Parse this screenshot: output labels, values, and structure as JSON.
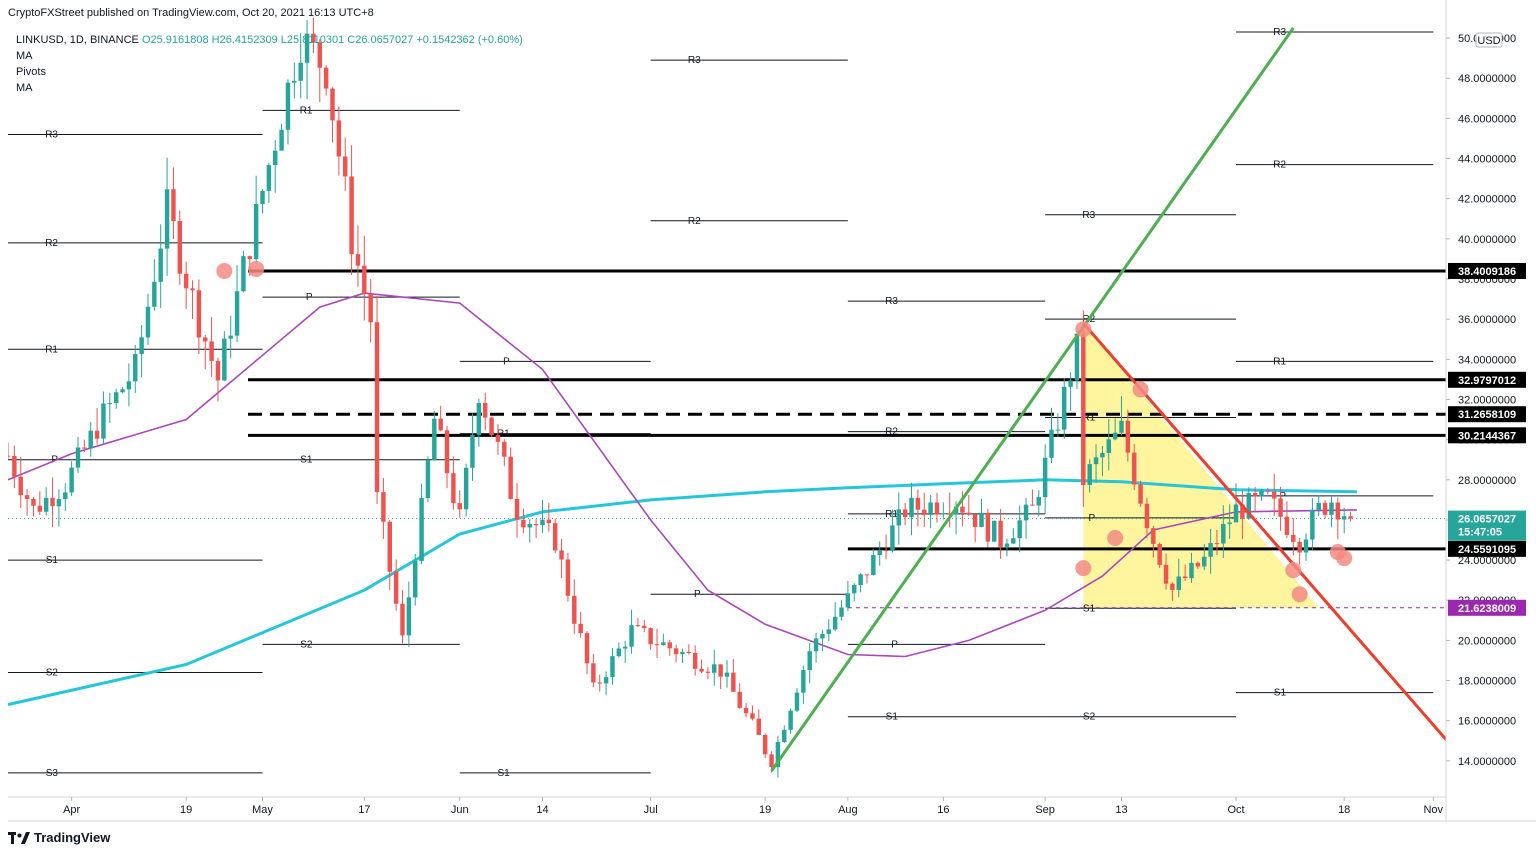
{
  "header": {
    "published_by": "CryptoFXStreet published on TradingView.com, Oct 20, 2021 16:13 UTC+8"
  },
  "legend": {
    "symbol_line": "LINKUSD, 1D, BINANCE",
    "ohlc": "O25.9161808 H26.4152309 L25.8110301 C26.0657027 +0.1542362 (+0.60%)",
    "indicators": [
      "MA",
      "Pivots",
      "MA"
    ]
  },
  "footer": {
    "logo_text": "TradingView"
  },
  "colors": {
    "bull": "#26a69a",
    "bear": "#ef5350",
    "ma_long": "#26c6da",
    "ma_short": "#ab47bc",
    "green_trend": "#4caf50",
    "red_trend": "#f23c2c",
    "triangle_fill": "#fff176",
    "last_price": "#26a69a",
    "purple_level": "#9c27b0",
    "marker": "#f28b82"
  },
  "chart_data": {
    "type": "candlestick",
    "symbol": "LINKUSD",
    "timeframe": "1D",
    "exchange": "BINANCE",
    "currency": "USD",
    "x_range": [
      "2021-03-22",
      "2021-11-03"
    ],
    "ylim": [
      12.2,
      51
    ],
    "y_ticks": [
      14,
      16,
      18,
      20,
      22,
      24,
      26,
      28,
      30,
      32,
      34,
      36,
      38,
      40,
      42,
      44,
      46,
      48,
      50
    ],
    "y_tick_labels": [
      "14.0000000",
      "16.0000000",
      "18.0000000",
      "20.0000000",
      "22.0000000",
      "24.0000000",
      "26.0000000",
      "28.0000000",
      "30.0000000",
      "32.0000000",
      "34.0000000",
      "36.0000000",
      "38.0000000",
      "40.0000000",
      "42.0000000",
      "44.0000000",
      "46.0000000",
      "48.0000000",
      "50.0000000"
    ],
    "x_ticks": [
      {
        "date": "2021-04-01",
        "label": "Apr"
      },
      {
        "date": "2021-04-19",
        "label": "19"
      },
      {
        "date": "2021-05-01",
        "label": "May"
      },
      {
        "date": "2021-05-17",
        "label": "17"
      },
      {
        "date": "2021-06-01",
        "label": "Jun"
      },
      {
        "date": "2021-06-14",
        "label": "14"
      },
      {
        "date": "2021-07-01",
        "label": "Jul"
      },
      {
        "date": "2021-07-19",
        "label": "19"
      },
      {
        "date": "2021-08-01",
        "label": "Aug"
      },
      {
        "date": "2021-08-16",
        "label": "16"
      },
      {
        "date": "2021-09-01",
        "label": "Sep"
      },
      {
        "date": "2021-09-13",
        "label": "13"
      },
      {
        "date": "2021-10-01",
        "label": "Oct"
      },
      {
        "date": "2021-10-18",
        "label": "18"
      },
      {
        "date": "2021-11-01",
        "label": "Nov"
      }
    ],
    "candle_closes_anchor": [
      [
        "2021-03-22",
        29.2
      ],
      [
        "2021-03-26",
        26.5
      ],
      [
        "2021-03-31",
        27.8
      ],
      [
        "2021-04-06",
        31.2
      ],
      [
        "2021-04-11",
        33.5
      ],
      [
        "2021-04-16",
        41.5
      ],
      [
        "2021-04-20",
        37.0
      ],
      [
        "2021-04-24",
        33.0
      ],
      [
        "2021-04-28",
        38.5
      ],
      [
        "2021-05-03",
        45.0
      ],
      [
        "2021-05-07",
        50.0
      ],
      [
        "2021-05-11",
        48.5
      ],
      [
        "2021-05-15",
        40.0
      ],
      [
        "2021-05-18",
        36.0
      ],
      [
        "2021-05-19",
        27.0
      ],
      [
        "2021-05-23",
        20.0
      ],
      [
        "2021-05-28",
        31.0
      ],
      [
        "2021-06-01",
        26.0
      ],
      [
        "2021-06-04",
        32.5
      ],
      [
        "2021-06-10",
        26.5
      ],
      [
        "2021-06-16",
        25.0
      ],
      [
        "2021-06-22",
        17.5
      ],
      [
        "2021-06-28",
        20.5
      ],
      [
        "2021-07-05",
        19.5
      ],
      [
        "2021-07-12",
        18.5
      ],
      [
        "2021-07-20",
        14.0
      ],
      [
        "2021-07-26",
        19.5
      ],
      [
        "2021-08-02",
        22.5
      ],
      [
        "2021-08-10",
        26.5
      ],
      [
        "2021-08-18",
        27.0
      ],
      [
        "2021-08-25",
        25.0
      ],
      [
        "2021-08-30",
        26.5
      ],
      [
        "2021-09-03",
        31.0
      ],
      [
        "2021-09-06",
        34.5
      ],
      [
        "2021-09-07",
        28.0
      ],
      [
        "2021-09-13",
        30.5
      ],
      [
        "2021-09-18",
        25.0
      ],
      [
        "2021-09-21",
        22.5
      ],
      [
        "2021-09-26",
        24.0
      ],
      [
        "2021-10-01",
        26.5
      ],
      [
        "2021-10-06",
        27.0
      ],
      [
        "2021-10-11",
        25.0
      ],
      [
        "2021-10-14",
        26.5
      ],
      [
        "2021-10-16",
        27.0
      ],
      [
        "2021-10-19",
        26.0657
      ]
    ],
    "moving_averages": [
      {
        "period_label": "MA",
        "color_key": "ma_long",
        "points": [
          [
            "2021-03-22",
            16.8
          ],
          [
            "2021-04-19",
            18.8
          ],
          [
            "2021-05-17",
            22.5
          ],
          [
            "2021-06-01",
            25.3
          ],
          [
            "2021-06-14",
            26.4
          ],
          [
            "2021-07-01",
            27.0
          ],
          [
            "2021-07-19",
            27.4
          ],
          [
            "2021-08-01",
            27.6
          ],
          [
            "2021-08-16",
            27.8
          ],
          [
            "2021-09-01",
            28.0
          ],
          [
            "2021-09-13",
            27.9
          ],
          [
            "2021-10-01",
            27.5
          ],
          [
            "2021-10-20",
            27.4
          ]
        ]
      },
      {
        "period_label": "MA",
        "color_key": "ma_short",
        "points": [
          [
            "2021-03-22",
            28.0
          ],
          [
            "2021-04-01",
            29.3
          ],
          [
            "2021-04-19",
            31.0
          ],
          [
            "2021-05-01",
            34.2
          ],
          [
            "2021-05-10",
            36.6
          ],
          [
            "2021-05-17",
            37.3
          ],
          [
            "2021-06-01",
            36.8
          ],
          [
            "2021-06-14",
            33.5
          ],
          [
            "2021-07-01",
            26.0
          ],
          [
            "2021-07-10",
            22.5
          ],
          [
            "2021-07-19",
            20.8
          ],
          [
            "2021-08-01",
            19.3
          ],
          [
            "2021-08-10",
            19.2
          ],
          [
            "2021-08-20",
            20.0
          ],
          [
            "2021-09-01",
            21.5
          ],
          [
            "2021-09-10",
            23.2
          ],
          [
            "2021-09-18",
            25.5
          ],
          [
            "2021-10-01",
            26.4
          ],
          [
            "2021-10-20",
            26.5
          ]
        ]
      }
    ],
    "horizontal_levels": [
      {
        "value": 38.4009186,
        "label": "38.4009186",
        "style": "solid"
      },
      {
        "value": 32.9797012,
        "label": "32.9797012",
        "style": "solid"
      },
      {
        "value": 31.2658109,
        "label": "31.2658109",
        "style": "dashed"
      },
      {
        "value": 30.2144367,
        "label": "30.2144367",
        "style": "solid"
      },
      {
        "value": 24.5591095,
        "label": "24.5591095",
        "style": "solid"
      },
      {
        "value": 21.6238009,
        "label": "21.6238009",
        "style": "dashed-purple"
      }
    ],
    "last_price": {
      "value": 26.0657027,
      "label": "26.0657027",
      "countdown": "15:47:05"
    },
    "trendlines": [
      {
        "color_key": "green_trend",
        "from": [
          "2021-07-20",
          13.5
        ],
        "to": [
          "2021-10-10",
          50.5
        ]
      },
      {
        "color_key": "red_trend",
        "from": [
          "2021-09-07",
          35.8
        ],
        "to": [
          "2021-11-04",
          14.7
        ]
      }
    ],
    "triangle": {
      "points": [
        [
          "2021-09-07",
          35.8
        ],
        [
          "2021-09-07",
          21.6238
        ],
        [
          "2021-10-14",
          21.6238
        ]
      ]
    },
    "markers": [
      [
        "2021-04-25",
        38.4
      ],
      [
        "2021-04-30",
        38.5
      ],
      [
        "2021-09-07",
        35.5
      ],
      [
        "2021-09-16",
        32.5
      ],
      [
        "2021-09-07",
        23.6
      ],
      [
        "2021-09-12",
        25.1
      ],
      [
        "2021-10-10",
        23.5
      ],
      [
        "2021-10-11",
        22.3
      ],
      [
        "2021-10-17",
        24.4
      ],
      [
        "2021-10-18",
        24.1
      ]
    ],
    "pivot_groups": [
      {
        "start": "2021-03-22",
        "end": "2021-05-01",
        "levels": [
          {
            "label": "R3",
            "value": 45.2
          },
          {
            "label": "R2",
            "value": 39.8
          },
          {
            "label": "R1",
            "value": 34.5
          },
          {
            "label": "P",
            "value": 29.0
          },
          {
            "label": "S1",
            "value": 24.0
          },
          {
            "label": "S2",
            "value": 18.4
          },
          {
            "label": "S3",
            "value": 13.4
          }
        ]
      },
      {
        "start": "2021-05-01",
        "end": "2021-06-01",
        "levels": [
          {
            "label": "R1",
            "value": 46.4
          },
          {
            "label": "P",
            "value": 37.1
          },
          {
            "label": "S1",
            "value": 29.0
          },
          {
            "label": "S2",
            "value": 19.8
          }
        ]
      },
      {
        "start": "2021-06-01",
        "end": "2021-07-01",
        "levels": [
          {
            "label": "P",
            "value": 33.9
          },
          {
            "label": "R1",
            "value": 30.3
          },
          {
            "label": "S1",
            "value": 13.4
          }
        ]
      },
      {
        "start": "2021-07-01",
        "end": "2021-08-01",
        "levels": [
          {
            "label": "R3",
            "value": 48.9
          },
          {
            "label": "R2",
            "value": 40.9
          },
          {
            "label": "P",
            "value": 22.3
          }
        ]
      },
      {
        "start": "2021-08-01",
        "end": "2021-09-01",
        "levels": [
          {
            "label": "R3",
            "value": 36.9
          },
          {
            "label": "R2",
            "value": 30.4
          },
          {
            "label": "R1",
            "value": 26.3
          },
          {
            "label": "P",
            "value": 19.8
          },
          {
            "label": "S1",
            "value": 16.2
          }
        ]
      },
      {
        "start": "2021-09-01",
        "end": "2021-10-01",
        "levels": [
          {
            "label": "R3",
            "value": 41.2
          },
          {
            "label": "R2",
            "value": 36.0
          },
          {
            "label": "R1",
            "value": 31.1
          },
          {
            "label": "P",
            "value": 26.1
          },
          {
            "label": "S1",
            "value": 21.6
          },
          {
            "label": "S2",
            "value": 16.2
          }
        ]
      },
      {
        "start": "2021-10-01",
        "end": "2021-11-01",
        "levels": [
          {
            "label": "R3",
            "value": 50.3
          },
          {
            "label": "R2",
            "value": 43.7
          },
          {
            "label": "R1",
            "value": 33.9
          },
          {
            "label": "P",
            "value": 27.2
          },
          {
            "label": "S1",
            "value": 17.4
          }
        ]
      }
    ]
  }
}
